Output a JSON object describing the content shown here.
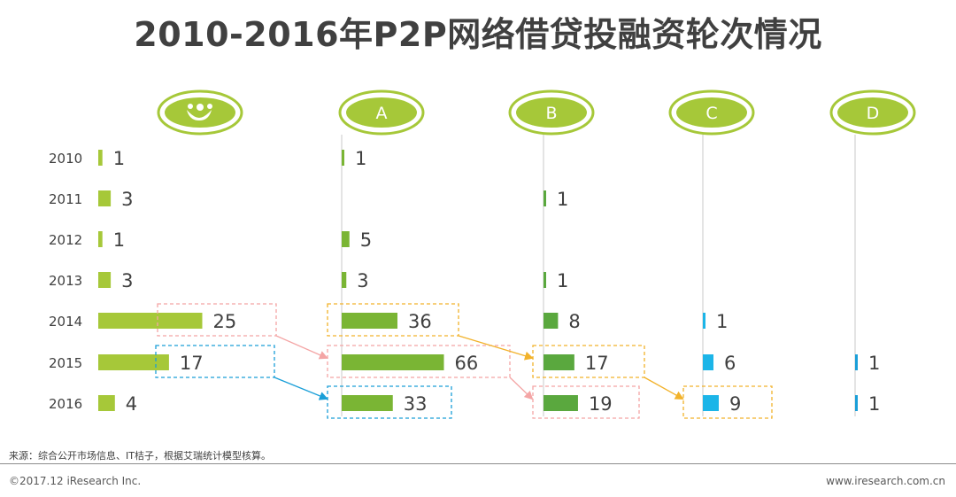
{
  "title": "2010-2016年P2P网络借贷投融资轮次情况",
  "footer": {
    "source": "来源：综合公开市场信息、IT桔子，根据艾瑞统计模型核算。",
    "copyright": "©2017.12 iResearch Inc.",
    "website": "www.iresearch.com.cn"
  },
  "colors": {
    "angel": "#a6c839",
    "a": "#7ab534",
    "b": "#5aa83e",
    "c": "#1cb5e8",
    "d": "#1a9fd8",
    "pink": "#f4a5a5",
    "orange": "#f2b22a",
    "blue": "#1a9fd8"
  },
  "chart_data": {
    "type": "bar",
    "categories": [
      "2010",
      "2011",
      "2012",
      "2013",
      "2014",
      "2015",
      "2016"
    ],
    "series": [
      {
        "name": "天使轮",
        "icon": "people-icon",
        "label": "",
        "color": "#a6c839",
        "values": [
          1,
          3,
          1,
          3,
          25,
          17,
          4
        ]
      },
      {
        "name": "A",
        "label": "A",
        "color": "#7ab534",
        "values": [
          1,
          null,
          5,
          3,
          36,
          66,
          33
        ]
      },
      {
        "name": "B",
        "label": "B",
        "color": "#5aa83e",
        "values": [
          null,
          1,
          null,
          1,
          8,
          17,
          19
        ]
      },
      {
        "name": "C",
        "label": "C",
        "color": "#1cb5e8",
        "values": [
          null,
          null,
          null,
          null,
          1,
          6,
          9
        ]
      },
      {
        "name": "D",
        "label": "D",
        "color": "#1a9fd8",
        "values": [
          null,
          null,
          null,
          null,
          null,
          1,
          1
        ]
      }
    ],
    "highlights": [
      {
        "series": 0,
        "year": "2014",
        "color": "pink"
      },
      {
        "series": 1,
        "year": "2015",
        "color": "pink"
      },
      {
        "series": 2,
        "year": "2016",
        "color": "pink"
      },
      {
        "series": 1,
        "year": "2014",
        "color": "orange"
      },
      {
        "series": 2,
        "year": "2015",
        "color": "orange"
      },
      {
        "series": 3,
        "year": "2016",
        "color": "orange"
      },
      {
        "series": 0,
        "year": "2015",
        "color": "blue"
      },
      {
        "series": 1,
        "year": "2016",
        "color": "blue"
      }
    ],
    "arrows": [
      {
        "from": [
          0,
          "2014"
        ],
        "to": [
          1,
          "2015"
        ],
        "color": "pink"
      },
      {
        "from": [
          1,
          "2015"
        ],
        "to": [
          2,
          "2016"
        ],
        "color": "pink"
      },
      {
        "from": [
          1,
          "2014"
        ],
        "to": [
          2,
          "2015"
        ],
        "color": "orange"
      },
      {
        "from": [
          2,
          "2015"
        ],
        "to": [
          3,
          "2016"
        ],
        "color": "orange"
      },
      {
        "from": [
          0,
          "2015"
        ],
        "to": [
          1,
          "2016"
        ],
        "color": "blue"
      }
    ]
  }
}
